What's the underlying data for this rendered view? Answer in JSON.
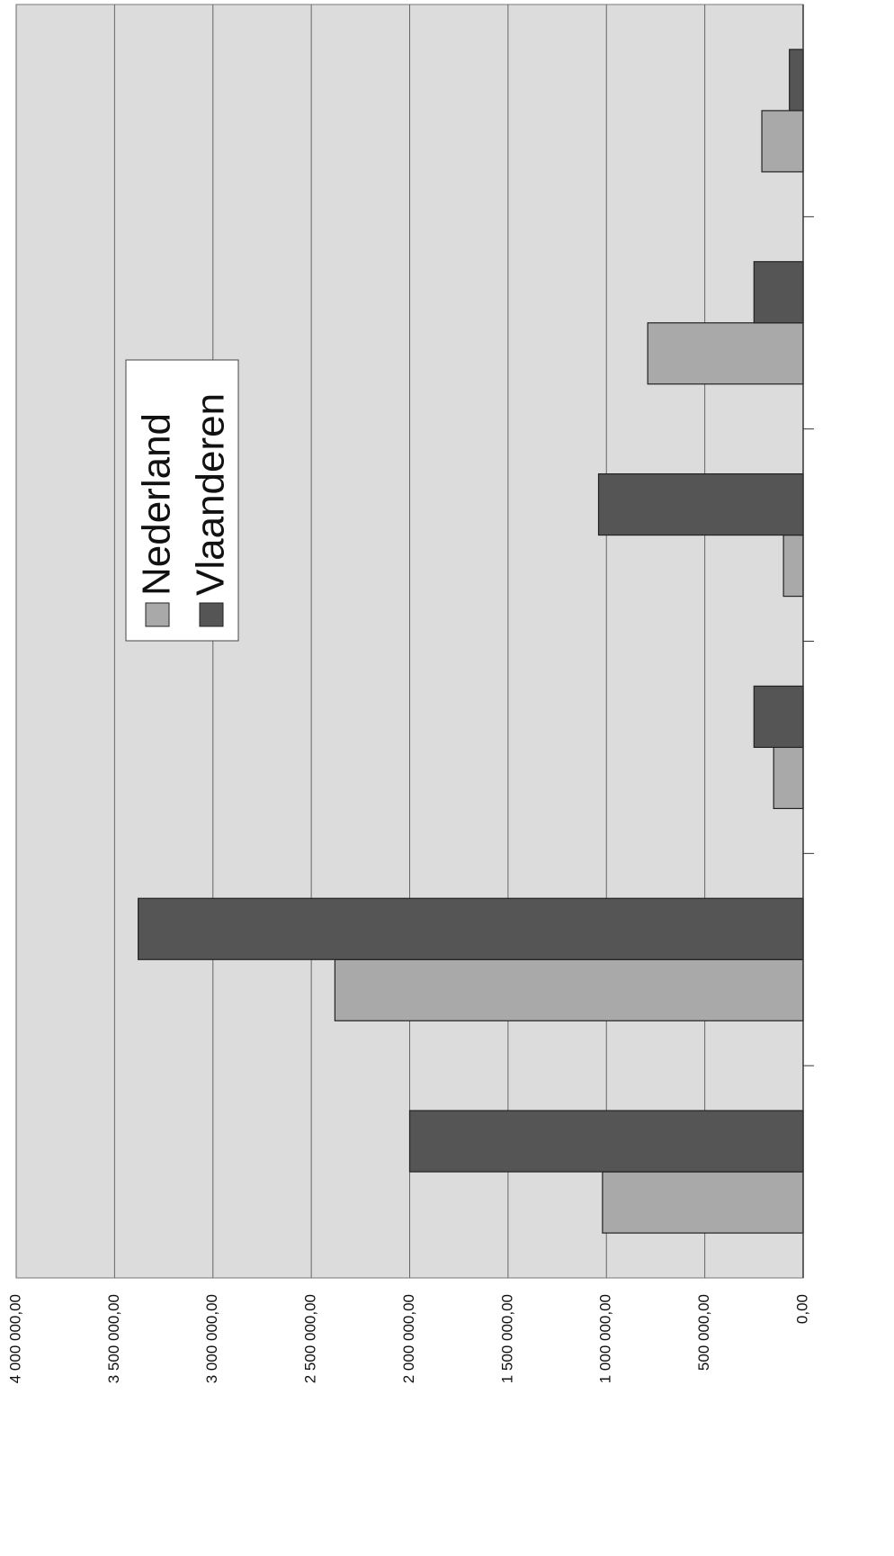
{
  "chart_data": {
    "type": "bar",
    "orientation": "horizontal",
    "categories": [
      null,
      null,
      null,
      null,
      null,
      null
    ],
    "series": [
      {
        "name": "Nederland",
        "color": "#a9a9a9",
        "values": [
          1020000,
          2380000,
          150000,
          100000,
          790000,
          210000
        ]
      },
      {
        "name": "Vlaanderen",
        "color": "#555555",
        "values": [
          2000000,
          3380000,
          250000,
          1040000,
          250000,
          70000
        ]
      }
    ],
    "ylim": [
      0,
      4000000
    ],
    "yticks": [
      {
        "value": 0,
        "label": "0,00"
      },
      {
        "value": 500000,
        "label": "500 000,00"
      },
      {
        "value": 1000000,
        "label": "1 000 000,00"
      },
      {
        "value": 1500000,
        "label": "1 500 000,00"
      },
      {
        "value": 2000000,
        "label": "2 000 000,00"
      },
      {
        "value": 2500000,
        "label": "2 500 000,00"
      },
      {
        "value": 3000000,
        "label": "3 000 000,00"
      },
      {
        "value": 3500000,
        "label": "3 500 000,00"
      },
      {
        "value": 4000000,
        "label": "4 000 000,00"
      }
    ],
    "grid": true
  }
}
